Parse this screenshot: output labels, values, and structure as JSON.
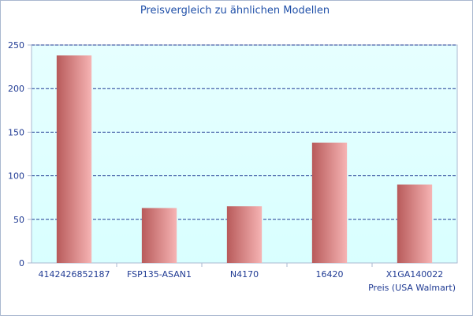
{
  "chart_data": {
    "type": "bar",
    "title": "Preisvergleich zu ähnlichen Modellen",
    "xlabel": "Preis (USA Walmart)",
    "ylabel": "",
    "categories": [
      "4142426852187",
      "FSP135-ASAN1",
      "N4170",
      "16420",
      "X1GA140022"
    ],
    "values": [
      238,
      63,
      65,
      138,
      90
    ],
    "ylim": [
      0,
      250
    ],
    "yticks": [
      0,
      50,
      100,
      150,
      200,
      250
    ],
    "grid": true,
    "legend": "none"
  },
  "colors": {
    "title": "#1f4fa8",
    "tick_label": "#1f3a93",
    "grid": "#1f3a93",
    "plot_bg": "#e0ffff",
    "bar_dark": "#b85a5a",
    "bar_light": "#f6b4b4",
    "frame": "#aab8d0"
  }
}
